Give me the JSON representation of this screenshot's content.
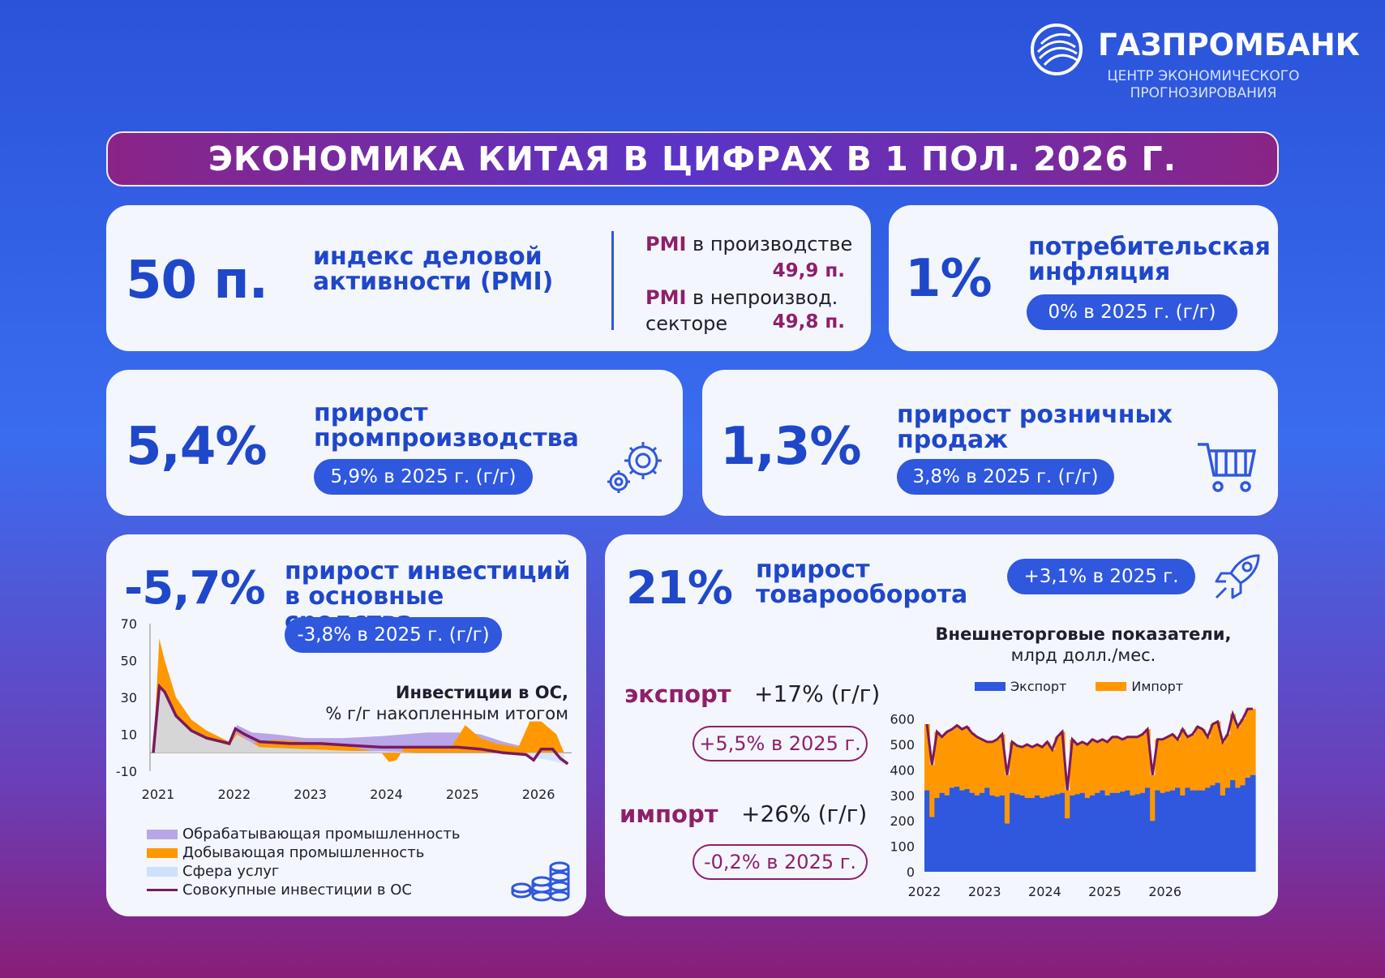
{
  "logo": {
    "name": "ГАЗПРОМБАНК",
    "subtitle": "ЦЕНТР ЭКОНОМИЧЕСКОГО ПРОГНОЗИРОВАНИЯ",
    "icon": "gazprombank-logo-icon"
  },
  "title": "ЭКОНОМИКА КИТАЯ В ЦИФРАХ В 1 ПОЛ. 2026 Г.",
  "pmi": {
    "value": "50 п.",
    "label": "индекс деловой активности (PMI)",
    "manufacturing_key": "PMI",
    "manufacturing_text": "в производстве",
    "manufacturing_value": "49,9 п.",
    "nonmanufacturing_key": "PMI",
    "nonmanufacturing_text_1": "в непроизвод.",
    "nonmanufacturing_text_2": "секторе",
    "nonmanufacturing_value": "49,8 п."
  },
  "inflation": {
    "value": "1%",
    "label": "потребительская инфляция",
    "prev": "0% в 2025 г. (г/г)"
  },
  "industry": {
    "value": "5,4%",
    "label": "прирост промпроизводства",
    "prev": "5,9% в 2025 г. (г/г)",
    "icon": "gears-icon"
  },
  "retail": {
    "value": "1,3%",
    "label": "прирост розничных продаж",
    "prev": "3,8% в 2025 г. (г/г)",
    "icon": "shopping-cart-icon"
  },
  "investment": {
    "value": "-5,7%",
    "label": "прирост инвестиций в основные средства",
    "prev": "-3,8% в 2025 г. (г/г)",
    "icon": "coins-icon",
    "chart_title_1": "Инвестиции в ОС,",
    "chart_title_2": "% г/г накопленным итогом",
    "legend": [
      "Обрабатывающая промышленность",
      "Добывающая промышленность",
      "Сфера услуг",
      "Совокупные инвестиции в ОС"
    ]
  },
  "trade": {
    "value": "21%",
    "label": "прирост товарооборота",
    "prev": "+3,1% в 2025 г.",
    "icon": "rocket-icon",
    "export_label": "экспорт",
    "export_value": "+17% (г/г)",
    "export_prev": "+5,5% в 2025 г.",
    "import_label": "импорт",
    "import_value": "+26% (г/г)",
    "import_prev": "-0,2% в 2025 г.",
    "chart_title_1": "Внешнеторговые показатели,",
    "chart_title_2": "млрд долл./мес.",
    "legend": [
      "Экспорт",
      "Импорт"
    ]
  },
  "colors": {
    "blue": "#1f47c9",
    "magenta": "#8e1f6a",
    "orange": "#ff9800",
    "lavender": "#b9a6e8",
    "lightblue": "#cfe0fb",
    "purple_line": "#7a1a5e",
    "export_bar": "#2f58de"
  },
  "chart_data": [
    {
      "type": "area",
      "title": "Инвестиции в ОС, % г/г накопленным итогом",
      "x_ticks": [
        "2021",
        "2022",
        "2023",
        "2024",
        "2025",
        "2026"
      ],
      "y_ticks": [
        70,
        50,
        30,
        10,
        -10
      ],
      "ylim": [
        -10,
        70
      ],
      "x_range": [
        2021.0,
        2026.5
      ],
      "series": [
        {
          "name": "Обрабатывающая промышленность",
          "x": [
            2021.0,
            2021.08,
            2021.2,
            2021.4,
            2021.6,
            2021.8,
            2022.0,
            2022.1,
            2022.3,
            2022.6,
            2023.0,
            2023.5,
            2024.0,
            2024.3,
            2024.6,
            2025.0,
            2025.3,
            2025.6,
            2025.9,
            2026.0,
            2026.2,
            2026.4
          ],
          "values": [
            0,
            36,
            32,
            20,
            13,
            9,
            5,
            15,
            11,
            10,
            8,
            8,
            9,
            10,
            11,
            11,
            10,
            6,
            3,
            2,
            2,
            0
          ]
        },
        {
          "name": "Добывающая промышленность",
          "x": [
            2021.0,
            2021.08,
            2021.15,
            2021.3,
            2021.5,
            2021.7,
            2021.9,
            2022.0,
            2022.1,
            2022.3,
            2022.6,
            2023.0,
            2023.5,
            2024.0,
            2024.1,
            2024.2,
            2024.3,
            2024.6,
            2024.9,
            2025.1,
            2025.3,
            2025.5,
            2025.8,
            2025.95,
            2026.1,
            2026.3,
            2026.4
          ],
          "values": [
            0,
            62,
            50,
            30,
            18,
            12,
            8,
            6,
            11,
            5,
            7,
            6,
            4,
            0,
            -5,
            -4,
            3,
            3,
            2,
            15,
            8,
            5,
            3,
            17,
            17,
            10,
            0
          ]
        },
        {
          "name": "Сфера услуг",
          "x": [
            2021.0,
            2021.08,
            2021.3,
            2021.6,
            2022.0,
            2022.1,
            2022.4,
            2023.0,
            2023.6,
            2024.0,
            2024.5,
            2025.0,
            2025.5,
            2025.9,
            2026.2,
            2026.4
          ],
          "values": [
            0,
            37,
            20,
            9,
            4,
            10,
            3,
            2,
            1,
            1,
            0,
            0,
            0,
            -2,
            -4,
            -6
          ]
        },
        {
          "name": "Совокупные инвестиции в ОС",
          "x": [
            2021.0,
            2021.08,
            2021.15,
            2021.3,
            2021.5,
            2021.7,
            2021.9,
            2022.0,
            2022.08,
            2022.2,
            2022.4,
            2022.8,
            2023.2,
            2023.6,
            2024.0,
            2024.4,
            2024.8,
            2025.0,
            2025.3,
            2025.6,
            2025.9,
            2026.0,
            2026.1,
            2026.25,
            2026.35,
            2026.45
          ],
          "values": [
            0,
            36,
            33,
            20,
            12,
            8,
            6,
            5,
            13,
            10,
            6,
            5,
            5,
            4,
            3,
            3,
            3,
            3,
            2,
            0,
            -1,
            -4,
            2,
            2,
            -3,
            -6
          ]
        }
      ]
    },
    {
      "type": "bar",
      "title": "Внешнеторговые показатели, млрд долл./мес.",
      "x_ticks": [
        "2022",
        "2023",
        "2024",
        "2025",
        "2026"
      ],
      "y_ticks": [
        600,
        500,
        400,
        300,
        200,
        100,
        0
      ],
      "ylim": [
        0,
        650
      ],
      "x_start": "2022-01",
      "series": [
        {
          "name": "Экспорт",
          "values": [
            320,
            215,
            290,
            310,
            300,
            330,
            335,
            320,
            325,
            310,
            300,
            310,
            330,
            300,
            295,
            300,
            190,
            310,
            305,
            300,
            290,
            290,
            300,
            290,
            295,
            300,
            305,
            310,
            210,
            300,
            305,
            310,
            290,
            300,
            310,
            320,
            300,
            310,
            310,
            315,
            320,
            300,
            305,
            310,
            330,
            200,
            320,
            310,
            315,
            320,
            330,
            300,
            330,
            320,
            320,
            320,
            330,
            340,
            350,
            300,
            330,
            360,
            330,
            340,
            370,
            380
          ]
        },
        {
          "name": "Импорт",
          "values": [
            580,
            420,
            550,
            530,
            550,
            560,
            575,
            560,
            570,
            545,
            530,
            520,
            510,
            510,
            520,
            540,
            380,
            510,
            495,
            490,
            500,
            490,
            500,
            490,
            510,
            480,
            530,
            550,
            320,
            520,
            500,
            510,
            500,
            520,
            510,
            520,
            510,
            530,
            530,
            520,
            530,
            530,
            530,
            540,
            560,
            380,
            520,
            520,
            530,
            540,
            520,
            560,
            530,
            540,
            570,
            560,
            530,
            580,
            590,
            510,
            540,
            620,
            570,
            600,
            640,
            640
          ]
        }
      ]
    }
  ]
}
